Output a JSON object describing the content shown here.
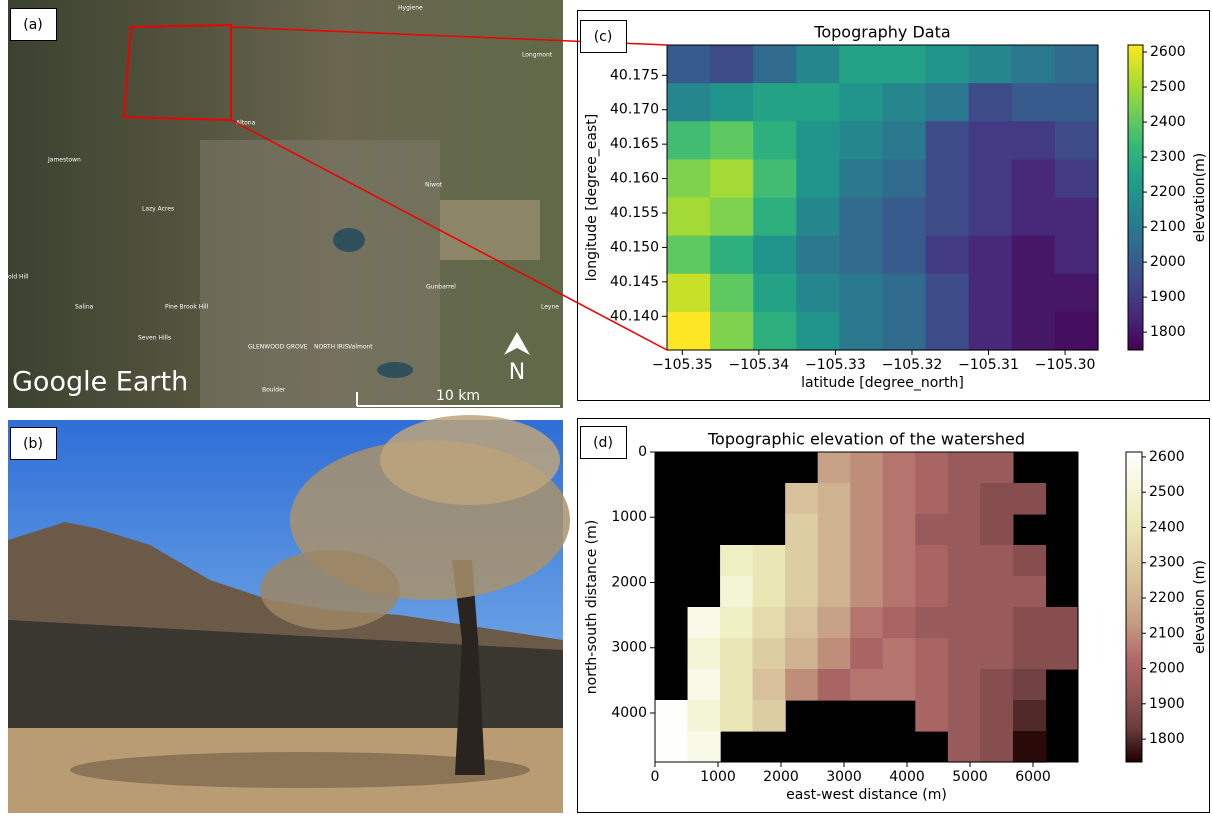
{
  "panel_labels": [
    "(a)",
    "(b)",
    "(c)",
    "(d)"
  ],
  "map": {
    "places": [
      "Hygiene",
      "Longmont",
      "Altona",
      "Jamestown",
      "Lazy Acres",
      "Niwot",
      "old Hill",
      "Salina",
      "Pine Brook Hill",
      "Seven Hills",
      "Gunbarrel",
      "Leyne",
      "GLENWOOD GROVE",
      "NORTH IRIS",
      "Valmont",
      "Boulder"
    ],
    "brand": "Google Earth",
    "scale": "10 km",
    "north": "N"
  },
  "chart_data": [
    {
      "type": "heatmap",
      "title": "Topography Data",
      "xlabel": "latitude [degree_north]",
      "ylabel": "longitude [degree_east]",
      "xlim": [
        -105.352,
        -105.2957
      ],
      "xticks": [
        {
          "value": -105.35,
          "label": "−105.35"
        },
        {
          "value": -105.34,
          "label": "−105.34"
        },
        {
          "value": -105.33,
          "label": "−105.33"
        },
        {
          "value": -105.32,
          "label": "−105.32"
        },
        {
          "value": -105.31,
          "label": "−105.31"
        },
        {
          "value": -105.3,
          "label": "−105.30"
        }
      ],
      "ylim": [
        40.1351,
        40.1794
      ],
      "yticks": [
        {
          "value": 40.14,
          "label": "40.140"
        },
        40.145,
        {
          "value": 40.15,
          "label": "40.150"
        },
        40.155,
        {
          "value": 40.16,
          "label": "40.160"
        },
        40.165,
        {
          "value": 40.17,
          "label": "40.170"
        },
        40.175
      ],
      "z": [
        [
          2000,
          1950,
          2050,
          2150,
          2250,
          2250,
          2200,
          2150,
          2100,
          2050
        ],
        [
          2150,
          2200,
          2250,
          2250,
          2200,
          2150,
          2100,
          1950,
          2000,
          2000
        ],
        [
          2350,
          2400,
          2300,
          2200,
          2150,
          2100,
          1950,
          1900,
          1900,
          1950
        ],
        [
          2450,
          2500,
          2350,
          2200,
          2100,
          2050,
          1950,
          1900,
          1850,
          1900
        ],
        [
          2500,
          2450,
          2300,
          2150,
          2050,
          2000,
          1950,
          1900,
          1850,
          1850
        ],
        [
          2400,
          2300,
          2200,
          2100,
          2050,
          2000,
          1900,
          1850,
          1800,
          1850
        ],
        [
          2550,
          2400,
          2250,
          2150,
          2100,
          2050,
          1950,
          1850,
          1800,
          1800
        ],
        [
          2620,
          2450,
          2300,
          2200,
          2100,
          2050,
          1950,
          1850,
          1800,
          1780
        ]
      ],
      "colormap": [
        "#440154",
        "#482878",
        "#3e4989",
        "#31688e",
        "#26828e",
        "#1f9e89",
        "#35b779",
        "#6ece58",
        "#b5de2b",
        "#fde725"
      ],
      "colorbar": {
        "label": "elevation(m)",
        "lim": [
          1749,
          2620
        ],
        "ticks": [
          1800,
          1900,
          2000,
          2100,
          2200,
          2300,
          2400,
          2500,
          2600
        ]
      }
    },
    {
      "type": "heatmap",
      "title": "Topographic elevation of the watershed",
      "xlabel": "east-west distance (m)",
      "ylabel": "north-south distance (m)",
      "xlim": [
        0,
        6714
      ],
      "xticks": [
        0,
        1000,
        2000,
        3000,
        4000,
        5000,
        6000
      ],
      "ylim": [
        0,
        4751
      ],
      "y_inverted": true,
      "yticks": [
        0,
        1000,
        2000,
        3000,
        4000
      ],
      "facecolor": "#000000",
      "z": [
        [
          null,
          null,
          null,
          null,
          null,
          2150,
          2100,
          2050,
          2000,
          1950,
          1950,
          null,
          null
        ],
        [
          null,
          null,
          null,
          null,
          2250,
          2200,
          2100,
          2050,
          2000,
          1950,
          1900,
          1900,
          null
        ],
        [
          null,
          null,
          null,
          null,
          2300,
          2200,
          2100,
          2050,
          1950,
          1950,
          1900,
          null,
          null
        ],
        [
          null,
          null,
          2450,
          2400,
          2300,
          2200,
          2100,
          2050,
          2000,
          1950,
          1950,
          1900,
          null
        ],
        [
          null,
          null,
          2500,
          2400,
          2300,
          2200,
          2100,
          2050,
          2000,
          1950,
          1950,
          1950,
          null
        ],
        [
          null,
          2550,
          2450,
          2350,
          2250,
          2150,
          2050,
          2000,
          1950,
          1950,
          1950,
          1900,
          1900
        ],
        [
          null,
          2500,
          2400,
          2300,
          2200,
          2100,
          2000,
          2050,
          2000,
          1950,
          1950,
          1900,
          1900
        ],
        [
          null,
          2550,
          2400,
          2250,
          2100,
          2000,
          2050,
          2050,
          2000,
          1950,
          1900,
          1850,
          null
        ],
        [
          2600,
          2500,
          2400,
          2300,
          null,
          null,
          null,
          null,
          2000,
          1950,
          1900,
          1800,
          null
        ],
        [
          2600,
          2550,
          null,
          null,
          null,
          null,
          null,
          null,
          null,
          1950,
          1900,
          1750,
          null
        ]
      ],
      "colormap": [
        "#1e0000",
        "#6b3d3d",
        "#925656",
        "#b26969",
        "#c49b81",
        "#d3b995",
        "#e0d3a7",
        "#ecebb8",
        "#f6f6dc",
        "#ffffff"
      ],
      "colorbar": {
        "label": "elevation (m)",
        "lim": [
          1735,
          2614
        ],
        "ticks": [
          1800,
          1900,
          2000,
          2100,
          2200,
          2300,
          2400,
          2500,
          2600
        ]
      }
    }
  ]
}
